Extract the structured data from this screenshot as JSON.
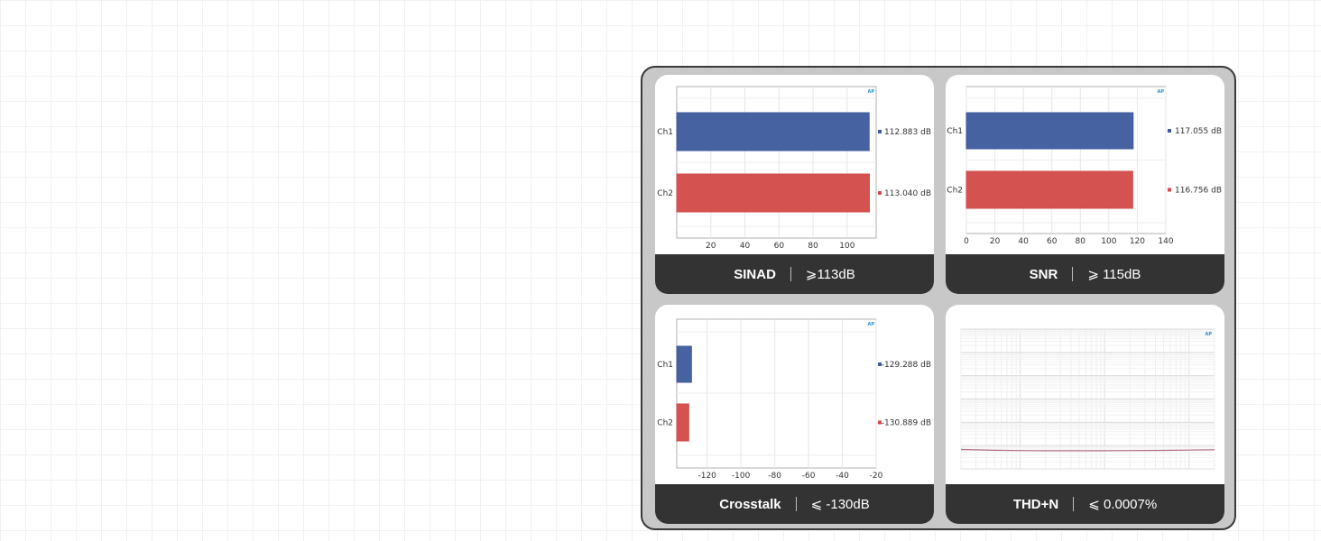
{
  "cards": [
    {
      "metric": "SINAD",
      "spec": "⩾113dB",
      "chart_data": {
        "type": "bar",
        "orientation": "horizontal",
        "categories": [
          "Ch1",
          "Ch2"
        ],
        "values": [
          112.883,
          113.04
        ],
        "value_labels": [
          "112.883 dB",
          "113.040 dB"
        ],
        "colors": [
          "#3d5a9c",
          "#d24a48"
        ],
        "xticks": [
          "20",
          "40",
          "60",
          "80",
          "100"
        ],
        "xlim": [
          0,
          117
        ]
      }
    },
    {
      "metric": "SNR",
      "spec": "⩾ 115dB",
      "chart_data": {
        "type": "bar",
        "orientation": "horizontal",
        "categories": [
          "Ch1",
          "Ch2"
        ],
        "values": [
          117.055,
          116.756
        ],
        "value_labels": [
          "117.055 dB",
          "116.756 dB"
        ],
        "colors": [
          "#3d5a9c",
          "#d24a48"
        ],
        "xticks": [
          "0",
          "20",
          "40",
          "60",
          "80",
          "100",
          "120",
          "140"
        ],
        "xlim": [
          0,
          140
        ]
      }
    },
    {
      "metric": "Crosstalk",
      "spec": "⩽ -130dB",
      "chart_data": {
        "type": "bar",
        "orientation": "horizontal",
        "categories": [
          "Ch1",
          "Ch2"
        ],
        "values": [
          -129.288,
          -130.889
        ],
        "value_labels": [
          "-129.288 dB",
          "-130.889 dB"
        ],
        "colors": [
          "#3d5a9c",
          "#d24a48"
        ],
        "xticks": [
          "-120",
          "-100",
          "-80",
          "-60",
          "-40",
          "-20"
        ],
        "xlim": [
          -138,
          -20
        ]
      }
    },
    {
      "metric": "THD+N",
      "spec": "⩽ 0.0007%",
      "chart_data": {
        "type": "line",
        "x_scale": "log",
        "y_scale": "log",
        "xlim": [
          20,
          20000
        ],
        "ylim": [
          0.0001,
          100
        ],
        "series": [
          {
            "color": "#b07080",
            "x": [
              20,
              50,
              100,
              200,
              500,
              1000,
              2000,
              5000,
              10000,
              20000
            ],
            "values": [
              0.00068,
              0.00063,
              0.00061,
              0.0006,
              0.0006,
              0.0006,
              0.00061,
              0.00062,
              0.00064,
              0.00066
            ]
          }
        ]
      }
    }
  ]
}
